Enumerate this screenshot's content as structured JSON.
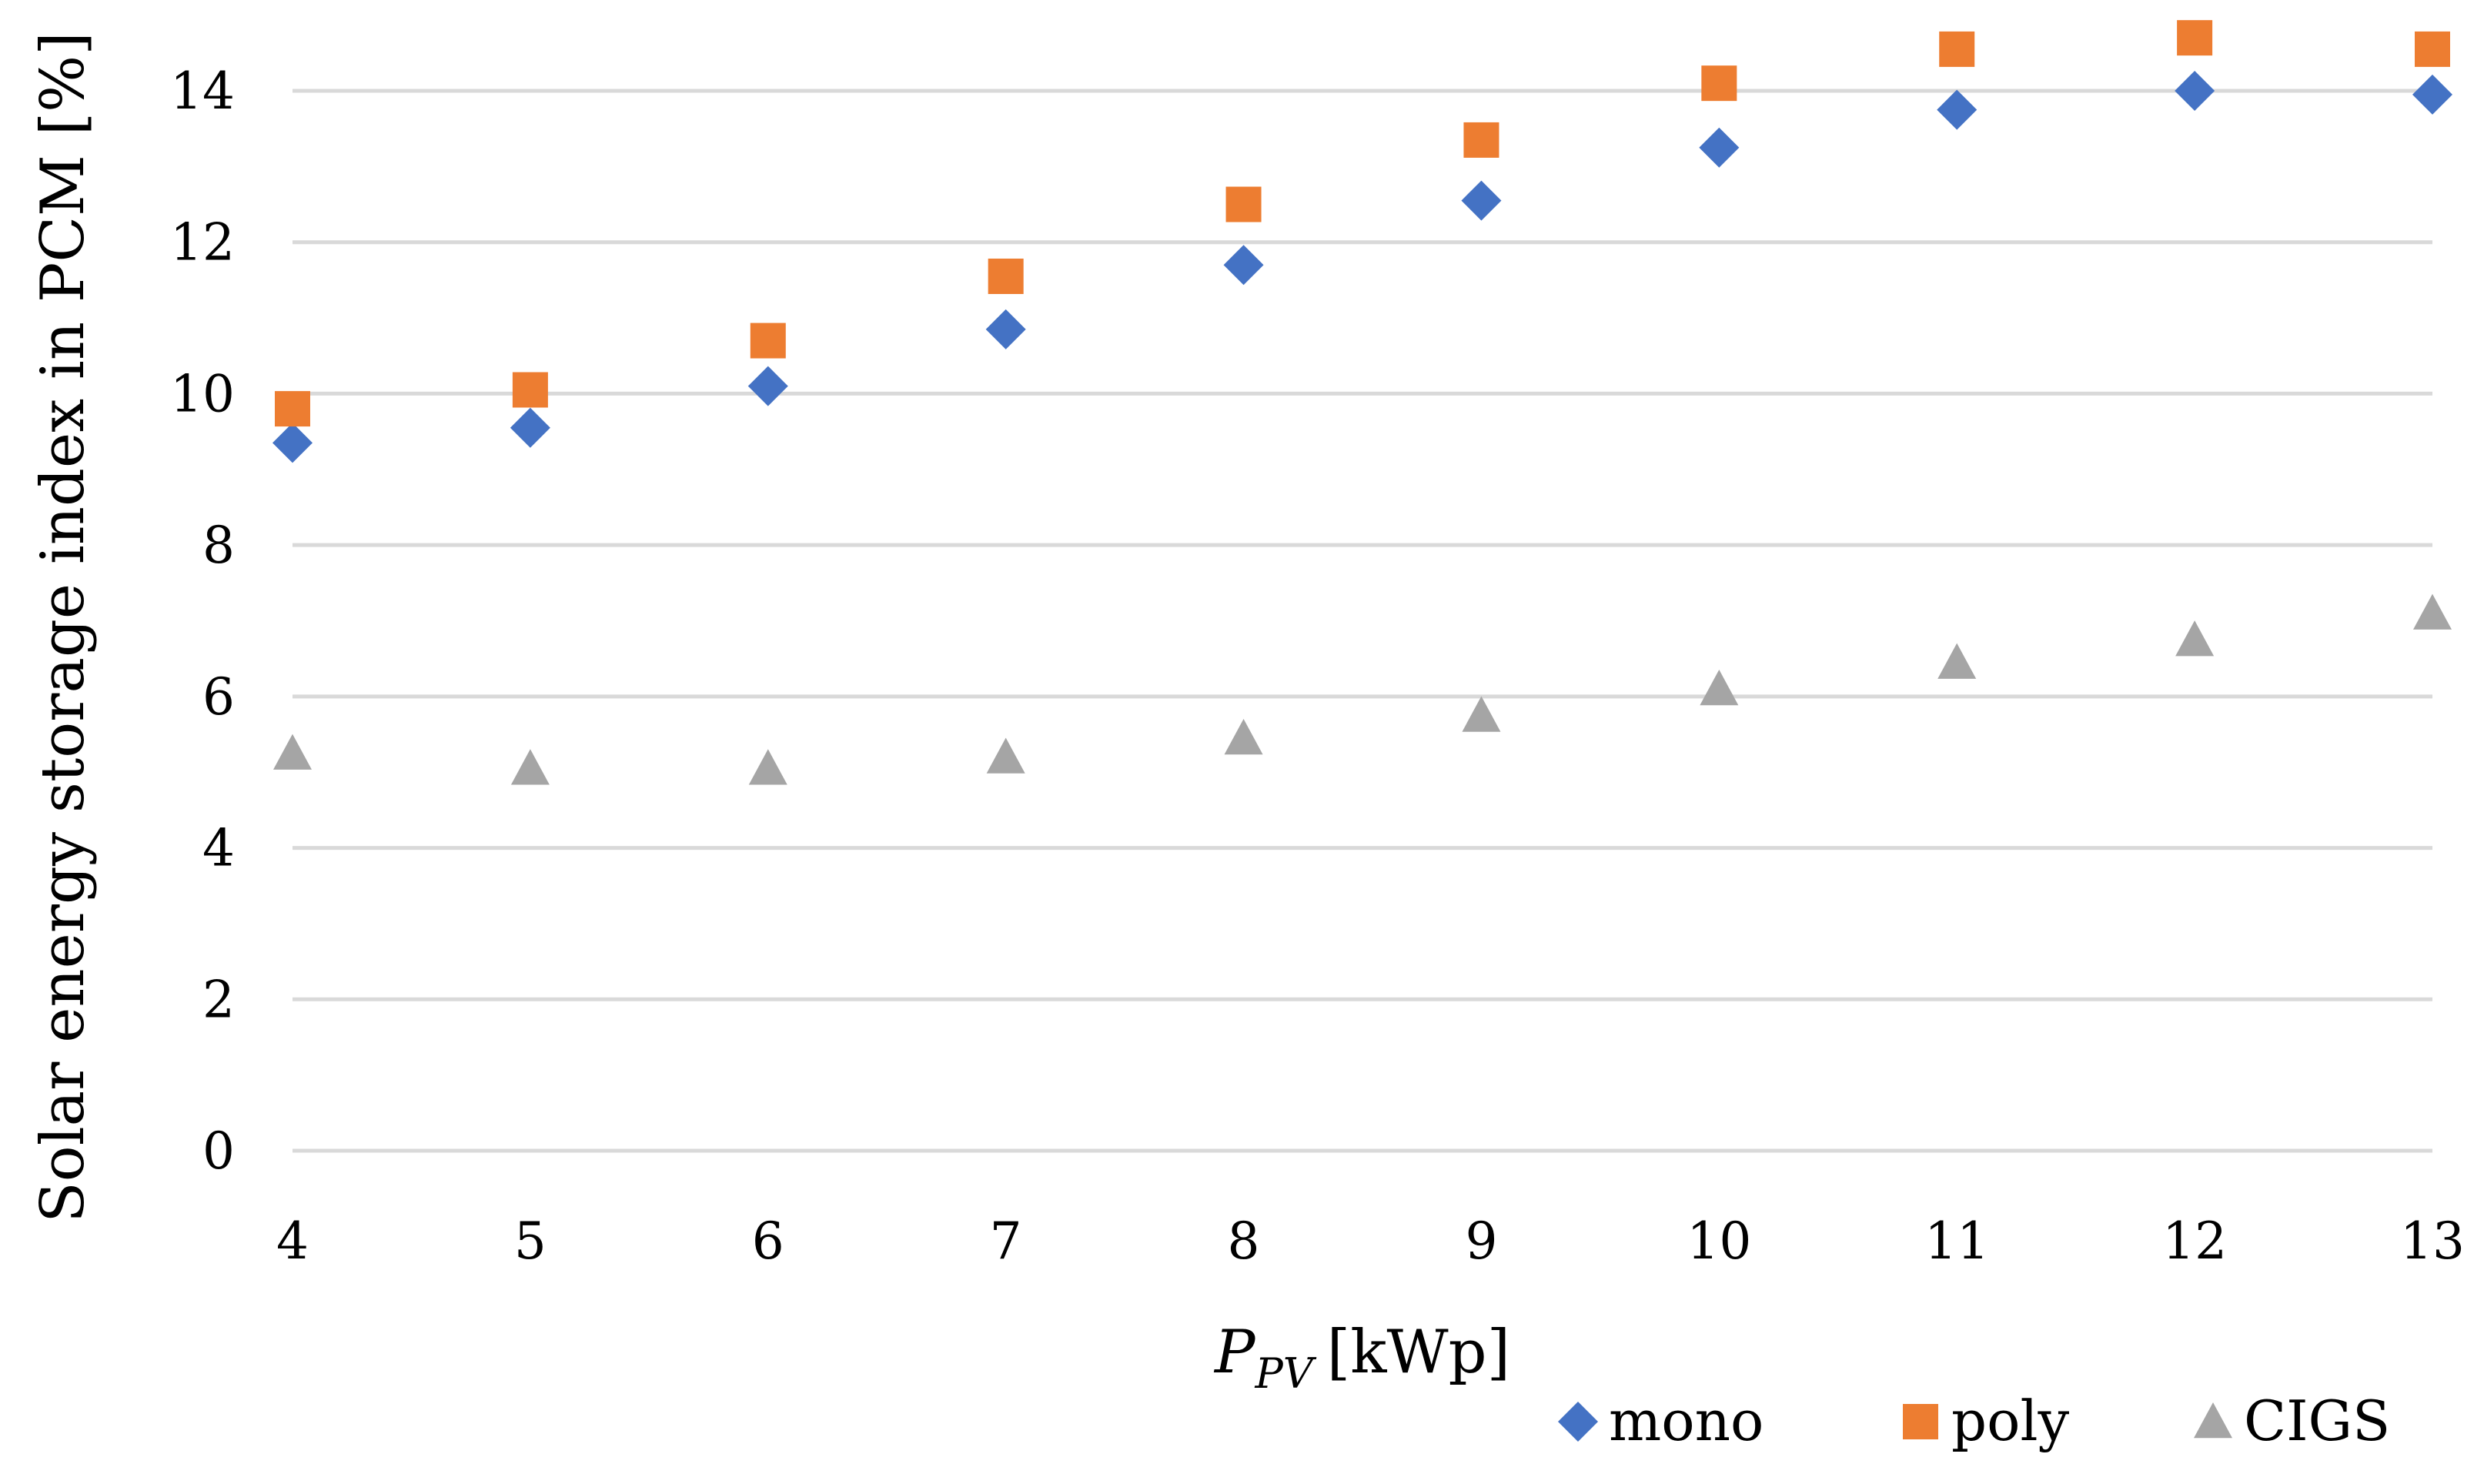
{
  "chart_data": {
    "type": "scatter",
    "title": "",
    "xlabel": {
      "main": "P",
      "subscript": "PV",
      "unit": "[kWp]"
    },
    "ylabel": "Solar energy storage index in PCM [%]",
    "x": [
      4,
      5,
      6,
      7,
      8,
      9,
      10,
      11,
      12,
      13
    ],
    "xlim": [
      4,
      13
    ],
    "ylim": [
      0,
      14
    ],
    "yticks": [
      0,
      2,
      4,
      6,
      8,
      10,
      12,
      14
    ],
    "xticks": [
      4,
      5,
      6,
      7,
      8,
      9,
      10,
      11,
      12,
      13
    ],
    "grid": "horizontal",
    "legend_position": "bottom-right",
    "series": [
      {
        "name": "mono",
        "marker": "diamond",
        "color": "#4472C4",
        "values": [
          9.35,
          9.55,
          10.1,
          10.85,
          11.7,
          12.55,
          13.25,
          13.75,
          14.0,
          13.95
        ]
      },
      {
        "name": "poly",
        "marker": "square",
        "color": "#ED7D31",
        "values": [
          9.8,
          10.05,
          10.7,
          11.55,
          12.5,
          13.35,
          14.1,
          14.55,
          14.7,
          14.55
        ]
      },
      {
        "name": "CIGS",
        "marker": "triangle",
        "color": "#A5A5A5",
        "values": [
          5.25,
          5.05,
          5.05,
          5.2,
          5.45,
          5.75,
          6.1,
          6.45,
          6.75,
          7.1
        ]
      }
    ]
  }
}
